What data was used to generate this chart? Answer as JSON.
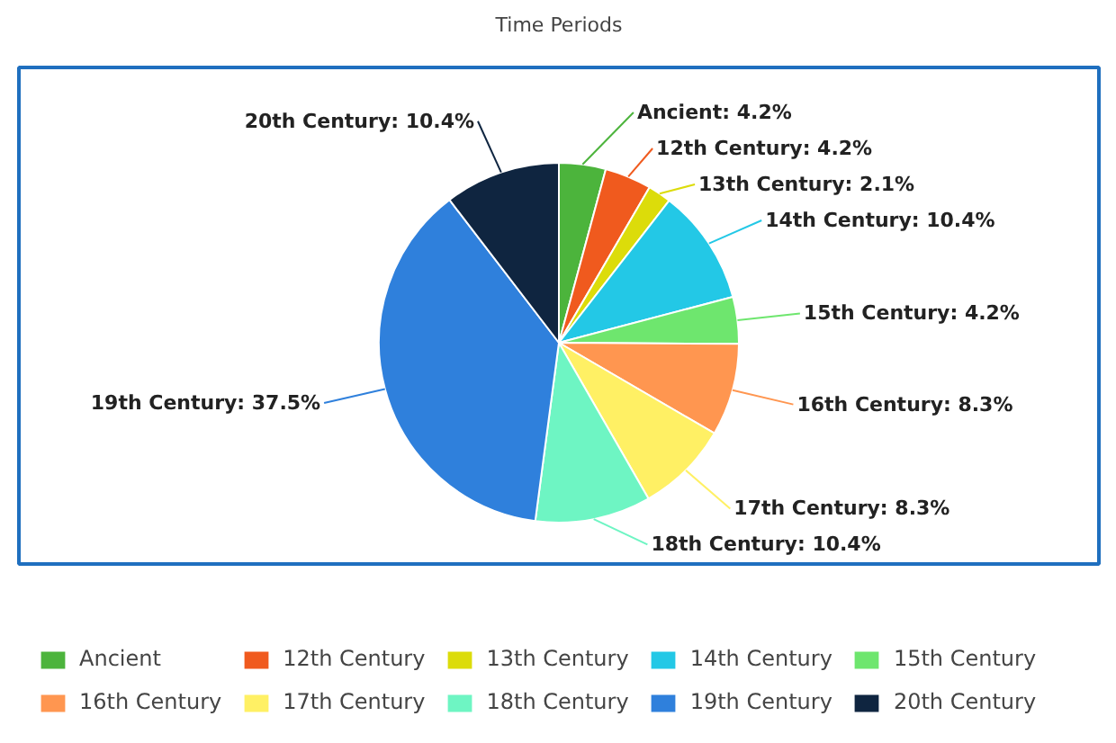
{
  "chart_data": {
    "type": "pie",
    "title": "Time Periods",
    "categories": [
      "Ancient",
      "12th Century",
      "13th Century",
      "14th Century",
      "15th Century",
      "16th Century",
      "17th Century",
      "18th Century",
      "19th Century",
      "20th Century"
    ],
    "values": [
      4.2,
      4.2,
      2.1,
      10.4,
      4.2,
      8.3,
      8.3,
      10.4,
      37.5,
      10.4
    ],
    "value_labels": [
      "Ancient: 4.2%",
      "12th Century: 4.2%",
      "13th Century: 2.1%",
      "14th Century: 10.4%",
      "15th Century: 4.2%",
      "16th Century: 8.3%",
      "17th Century: 8.3%",
      "18th Century: 10.4%",
      "19th Century: 37.5%",
      "20th Century: 10.4%"
    ],
    "colors": [
      "#4cb43c",
      "#f05a1e",
      "#dcdc0a",
      "#23c8e6",
      "#6ee66e",
      "#ff9650",
      "#fff064",
      "#6ef5c3",
      "#2f80dc",
      "#0f2540"
    ],
    "legend": "bottom"
  }
}
